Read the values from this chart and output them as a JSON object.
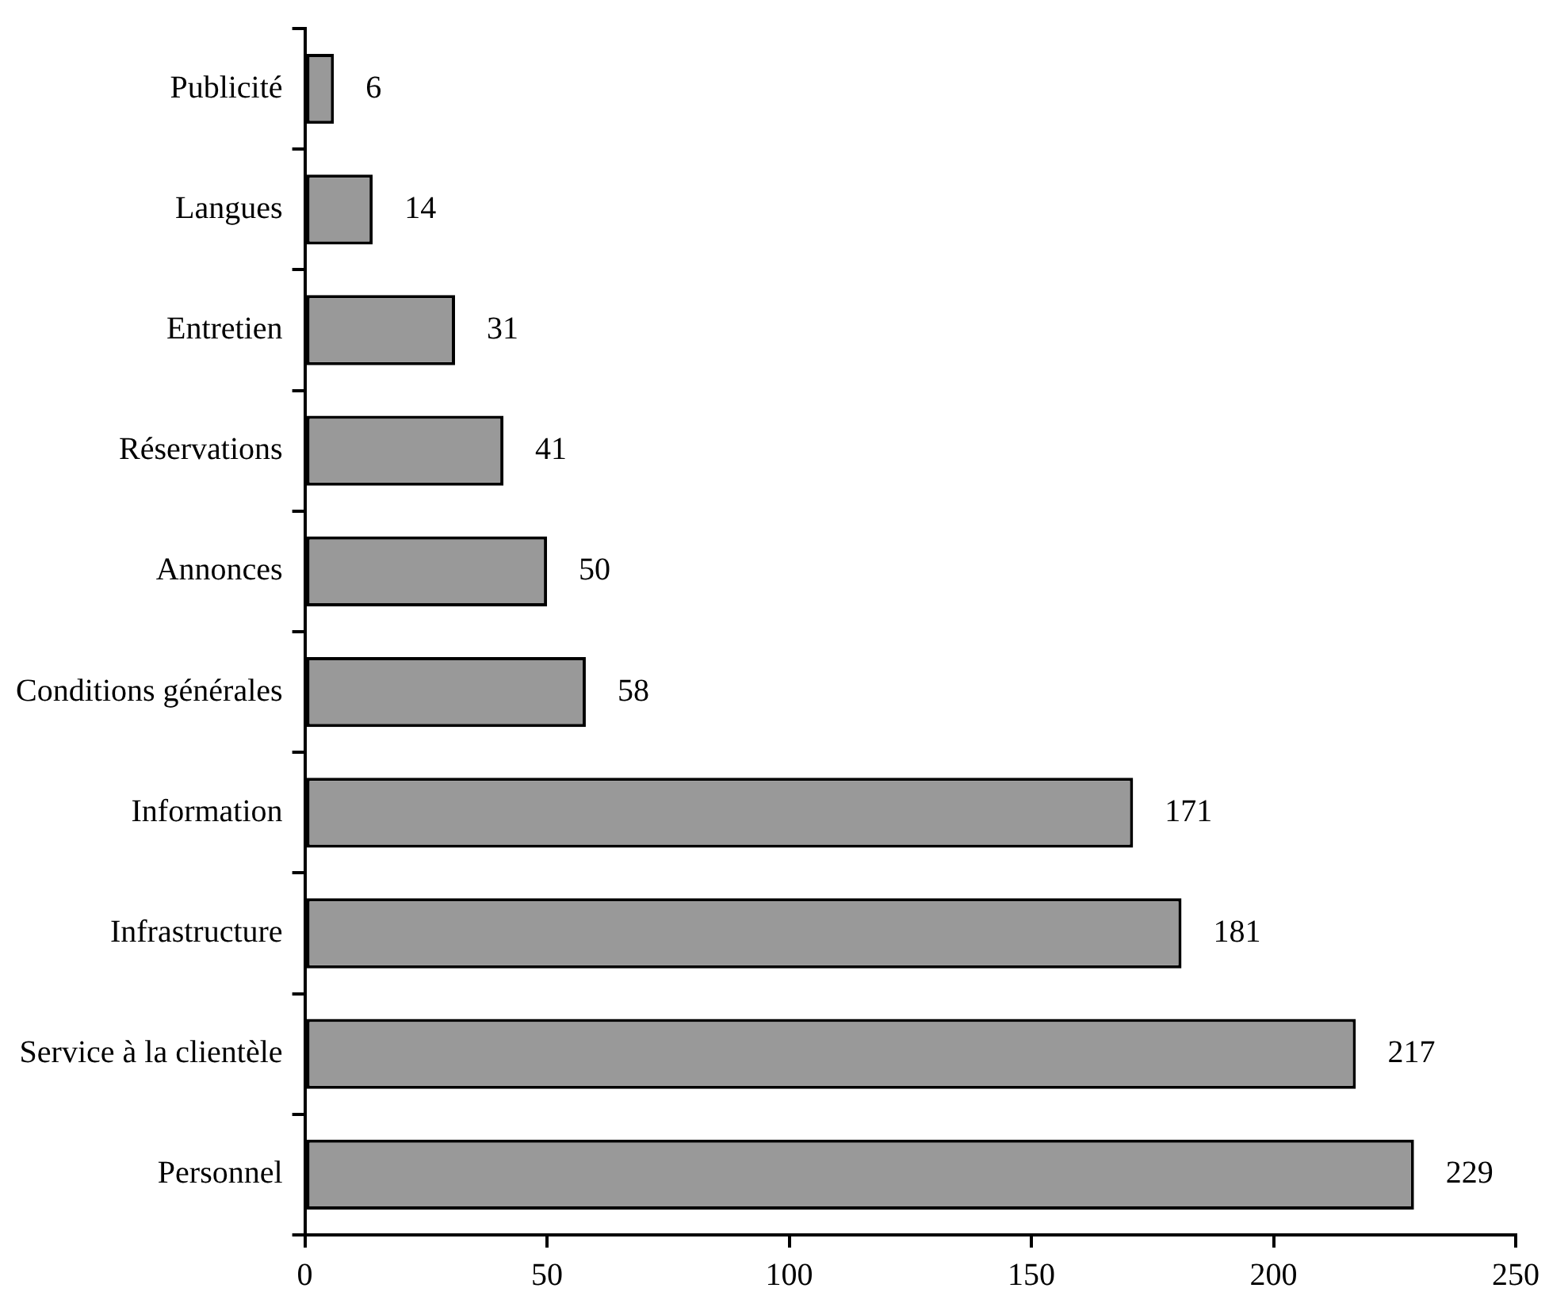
{
  "chart_data": {
    "type": "bar",
    "orientation": "horizontal",
    "categories": [
      "Publicité",
      "Langues",
      "Entretien",
      "Réservations",
      "Annonces",
      "Conditions générales",
      "Information",
      "Infrastructure",
      "Service à la clientèle",
      "Personnel"
    ],
    "values": [
      6,
      14,
      31,
      41,
      50,
      58,
      171,
      181,
      217,
      229
    ],
    "color": "#999999",
    "xlim": [
      0,
      250
    ],
    "xticks": [
      0,
      50,
      100,
      150,
      200,
      250
    ],
    "data_labels": true
  }
}
